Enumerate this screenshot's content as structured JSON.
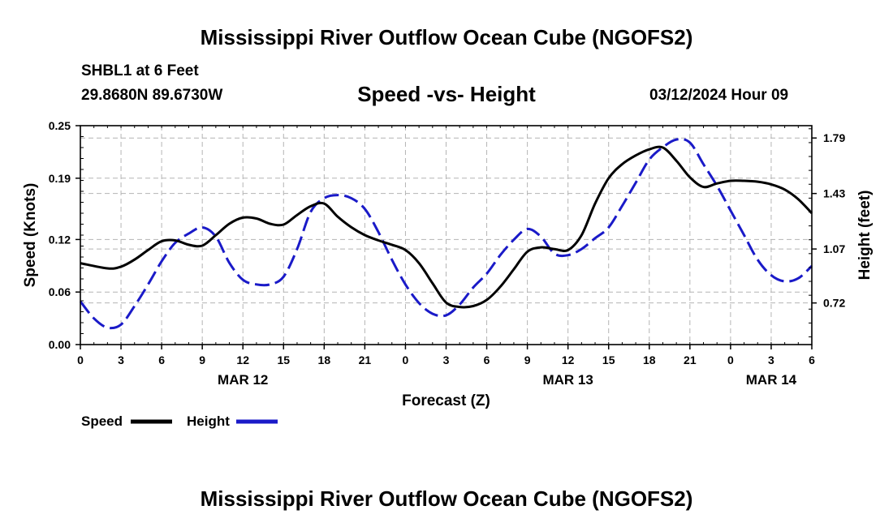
{
  "title": "Mississippi River Outflow Ocean Cube (NGOFS2)",
  "footer_title": "Mississippi River Outflow Ocean Cube (NGOFS2)",
  "station": "SHBL1 at 6 Feet",
  "coordinates": "29.8680N  89.6730W",
  "subtitle": "Speed -vs- Height",
  "datetime": "03/12/2024 Hour 09",
  "colors": {
    "speed": "#000000",
    "height": "#1a1ac8",
    "grid": "#b4b4b4"
  },
  "chart_data": {
    "type": "line",
    "title": "Speed -vs- Height",
    "xlabel": "Forecast (Z)",
    "ylabel": "Speed (Knots)",
    "y2label": "Height (feet)",
    "xlim": [
      0,
      54
    ],
    "ylim": [
      0,
      0.25
    ],
    "y2lim": [
      0.45,
      1.87
    ],
    "x_ticks": [
      0,
      3,
      6,
      9,
      12,
      15,
      18,
      21,
      24,
      27,
      30,
      33,
      36,
      39,
      42,
      45,
      48,
      51,
      54
    ],
    "x_tick_labels": [
      "0",
      "3",
      "6",
      "9",
      "12",
      "15",
      "18",
      "21",
      "0",
      "3",
      "6",
      "9",
      "12",
      "15",
      "18",
      "21",
      "0",
      "3",
      "6"
    ],
    "date_labels": [
      {
        "x": 12,
        "label": "MAR 12"
      },
      {
        "x": 36,
        "label": "MAR 13"
      },
      {
        "x": 51,
        "label": "MAR 14"
      }
    ],
    "y_ticks": [
      0.0,
      0.06,
      0.12,
      0.19,
      0.25
    ],
    "y_tick_labels": [
      "0.00",
      "0.06",
      "0.12",
      "0.19",
      "0.25"
    ],
    "y2_ticks": [
      0.72,
      1.07,
      1.43,
      1.79
    ],
    "y2_tick_labels": [
      "0.72",
      "1.07",
      "1.43",
      "1.79"
    ],
    "grid": true,
    "legend": {
      "position": "bottom-left",
      "entries": [
        "Speed",
        "Height"
      ]
    },
    "series": [
      {
        "name": "Speed",
        "axis": "left",
        "style": "solid",
        "x": [
          0,
          2,
          3,
          4,
          5,
          6,
          7,
          8,
          9,
          10,
          11,
          12,
          13,
          14,
          15,
          16,
          17,
          18,
          19,
          20,
          21,
          22,
          23,
          24,
          25,
          26,
          27,
          28,
          29,
          30,
          31,
          32,
          33,
          34,
          35,
          36,
          37,
          38,
          39,
          40,
          41,
          42,
          43,
          44,
          45,
          46,
          47,
          48,
          49,
          50,
          51,
          52,
          53,
          54
        ],
        "values": [
          0.093,
          0.087,
          0.089,
          0.097,
          0.108,
          0.118,
          0.119,
          0.114,
          0.113,
          0.125,
          0.138,
          0.145,
          0.144,
          0.138,
          0.137,
          0.148,
          0.158,
          0.161,
          0.146,
          0.134,
          0.125,
          0.119,
          0.114,
          0.108,
          0.093,
          0.07,
          0.048,
          0.043,
          0.044,
          0.051,
          0.066,
          0.086,
          0.106,
          0.111,
          0.109,
          0.108,
          0.125,
          0.161,
          0.19,
          0.206,
          0.216,
          0.223,
          0.225,
          0.21,
          0.191,
          0.18,
          0.184,
          0.187,
          0.187,
          0.186,
          0.183,
          0.177,
          0.166,
          0.15
        ]
      },
      {
        "name": "Height",
        "axis": "right",
        "style": "dashed",
        "x": [
          0,
          1,
          2,
          3,
          4,
          5,
          6,
          7,
          8,
          9,
          10,
          11,
          12,
          13,
          14,
          15,
          16,
          17,
          18,
          19,
          20,
          21,
          22,
          23,
          24,
          25,
          26,
          27,
          28,
          29,
          30,
          31,
          32,
          33,
          34,
          35,
          36,
          37,
          38,
          39,
          40,
          41,
          42,
          43,
          44,
          45,
          46,
          47,
          48,
          49,
          50,
          51,
          52,
          53,
          54
        ],
        "values": [
          0.73,
          0.62,
          0.56,
          0.58,
          0.7,
          0.84,
          0.99,
          1.11,
          1.17,
          1.21,
          1.15,
          0.98,
          0.87,
          0.84,
          0.84,
          0.89,
          1.07,
          1.31,
          1.4,
          1.42,
          1.4,
          1.33,
          1.18,
          1.0,
          0.84,
          0.72,
          0.65,
          0.64,
          0.71,
          0.82,
          0.91,
          1.03,
          1.13,
          1.2,
          1.15,
          1.04,
          1.03,
          1.07,
          1.14,
          1.21,
          1.35,
          1.5,
          1.65,
          1.73,
          1.78,
          1.76,
          1.62,
          1.48,
          1.32,
          1.16,
          1.0,
          0.9,
          0.86,
          0.88,
          0.96
        ]
      }
    ]
  }
}
